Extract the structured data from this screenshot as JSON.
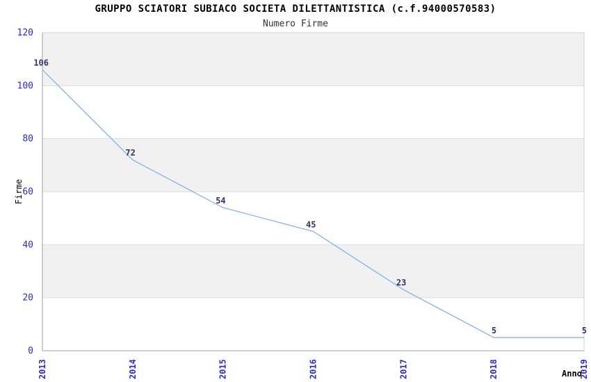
{
  "chart_data": {
    "type": "line",
    "title": "GRUPPO SCIATORI SUBIACO SOCIETA DILETTANTISTICA (c.f.94000570583)",
    "subtitle": "Numero Firme",
    "xlabel": "Anno",
    "ylabel": "Firme",
    "x": [
      "2013",
      "2014",
      "2015",
      "2016",
      "2017",
      "2018",
      "2019"
    ],
    "values": [
      106,
      72,
      54,
      45,
      23,
      5,
      5
    ],
    "ylim": [
      0,
      120
    ],
    "ytick_step": 20,
    "yticks": [
      0,
      20,
      40,
      60,
      80,
      100,
      120
    ],
    "grid": "horizontal gridlines every 20 with alternating shaded bands",
    "legend": "none",
    "markers": "none",
    "colors": {
      "line": "#85b3e8",
      "tick_label": "#2929d6",
      "data_label": "#333366",
      "band": "#f1f1f1",
      "grid": "#dcdcdc",
      "border": "#d0d0d0",
      "axis": "#a0a0a0",
      "title": "#000000",
      "subtitle": "#333333",
      "background": "#ffffff"
    }
  }
}
